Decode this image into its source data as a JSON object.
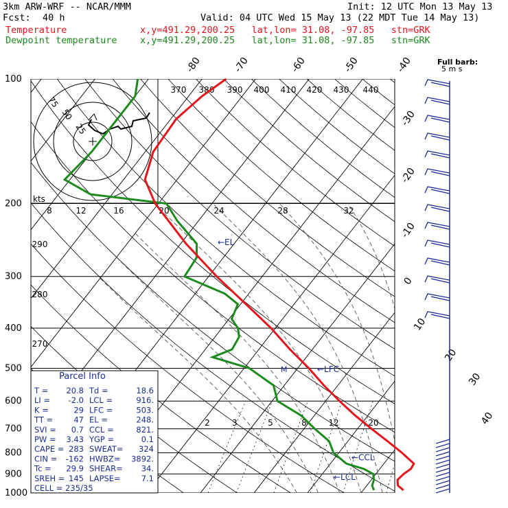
{
  "header": {
    "model": "3km ARW-WRF -- NCAR/MMM",
    "init": "Init: 12 UTC Mon 13 May 13",
    "fcst_label": "Fcst:",
    "fcst_value": "40 h",
    "valid": "Valid: 04 UTC Wed 15 May 13 (22 MDT Tue 14 May 13)",
    "temp_label": "Temperature",
    "dew_label": "Dewpoint temperature",
    "loc_line": "x,y=491.29,200.25   lat,lon= 31.08, -97.85   stn=GRK"
  },
  "colors": {
    "temperature": "#e4141c",
    "dewpoint": "#1c8a1c",
    "parcel_text": "#1c2c96",
    "lines": "#000000",
    "moist_adiabats": "#555555",
    "hodograph_box": "#000000"
  },
  "chart_data": {
    "type": "line",
    "title": "",
    "ylabel": "",
    "ylim": [
      1000,
      100
    ],
    "y_log_scale": true,
    "y_ticks": [
      100,
      200,
      300,
      400,
      500,
      600,
      700,
      800,
      900,
      1000
    ],
    "isotherm_labels": [
      "-80",
      "-70",
      "-60",
      "-50",
      "-40",
      "-30",
      "-20",
      "-10",
      "0",
      "10",
      "20",
      "30",
      "40"
    ],
    "theta_labels": [
      "370",
      "380",
      "390",
      "400",
      "410",
      "420",
      "430",
      "440"
    ],
    "theta_labels_lower": [
      "290",
      "280",
      "270"
    ],
    "mixing_ratio_labels": [
      "2",
      "3",
      "5",
      "8",
      "12",
      "20"
    ],
    "hodograph": {
      "ring_labels": [
        "75",
        "50",
        "25"
      ],
      "speed_unit": "kts",
      "speed_ticks": [
        "8",
        "12",
        "16",
        "20",
        "24",
        "28",
        "32"
      ]
    },
    "series": [
      {
        "name": "Temperature",
        "color": "#e4141c",
        "p": [
          985,
          960,
          930,
          900,
          875,
          850,
          800,
          750,
          700,
          650,
          600,
          550,
          500,
          450,
          400,
          350,
          300,
          250,
          200,
          175,
          150,
          125,
          110,
          100
        ],
        "t": [
          27.5,
          25.8,
          24.9,
          25.2,
          25.8,
          25.6,
          21.8,
          17.4,
          12.6,
          7.6,
          2.6,
          -2.6,
          -7.9,
          -14.2,
          -20.8,
          -29.0,
          -38.5,
          -49.0,
          -60.6,
          -66.0,
          -68.5,
          -69.0,
          -67.5,
          -65.5
        ]
      },
      {
        "name": "Dewpoint temperature",
        "color": "#1c8a1c",
        "p": [
          985,
          960,
          930,
          900,
          875,
          850,
          800,
          750,
          700,
          650,
          600,
          550,
          500,
          470,
          450,
          420,
          400,
          380,
          350,
          330,
          300,
          270,
          250,
          220,
          200,
          190,
          175,
          150,
          125,
          110,
          100
        ],
        "td": [
          22.0,
          21.0,
          20.5,
          19.5,
          17.0,
          13.0,
          9.0,
          6.5,
          2.0,
          -2.5,
          -9.0,
          -12.0,
          -19.0,
          -27.5,
          -25.0,
          -25.5,
          -27.0,
          -29.5,
          -30.5,
          -34.5,
          -44.5,
          -45.0,
          -47.0,
          -54.0,
          -58.5,
          -74.0,
          -81.0,
          -80.0,
          -80.0,
          -80.0,
          -82.0
        ]
      }
    ],
    "levels": [
      {
        "label": "EL",
        "p": 248
      },
      {
        "label": "LFC",
        "p": 503
      },
      {
        "label": "CCL",
        "p": 821
      },
      {
        "label": "LCL",
        "p": 916
      },
      {
        "label": "M",
        "p": 503
      }
    ],
    "wind_barb_label": "Full barb:",
    "wind_barb_unit": "5 m s",
    "parcel_info": {
      "title": "Parcel Info",
      "rows": [
        [
          "T  =",
          "20.8",
          "Td =",
          "18.6"
        ],
        [
          "LI =",
          "-2.0",
          "LCL =",
          "916."
        ],
        [
          "K  =",
          "29",
          "LFC =",
          "503."
        ],
        [
          "TT =",
          "47",
          "EL  =",
          "248."
        ],
        [
          "SVI =",
          "0.7",
          "CCL =",
          "821."
        ],
        [
          "PW =",
          "3.43",
          "YGP =",
          "0.1"
        ],
        [
          "CAPE =",
          "283",
          "SWEAT=",
          "324"
        ],
        [
          "CIN =",
          "-162",
          "HWBZ=",
          "3892."
        ],
        [
          "Tc =",
          "29.9",
          "SHEAR=",
          "34."
        ],
        [
          "SREH =",
          "145",
          "LAPSE=",
          "7.1"
        ]
      ],
      "cell": "CELL = 235/35"
    }
  }
}
